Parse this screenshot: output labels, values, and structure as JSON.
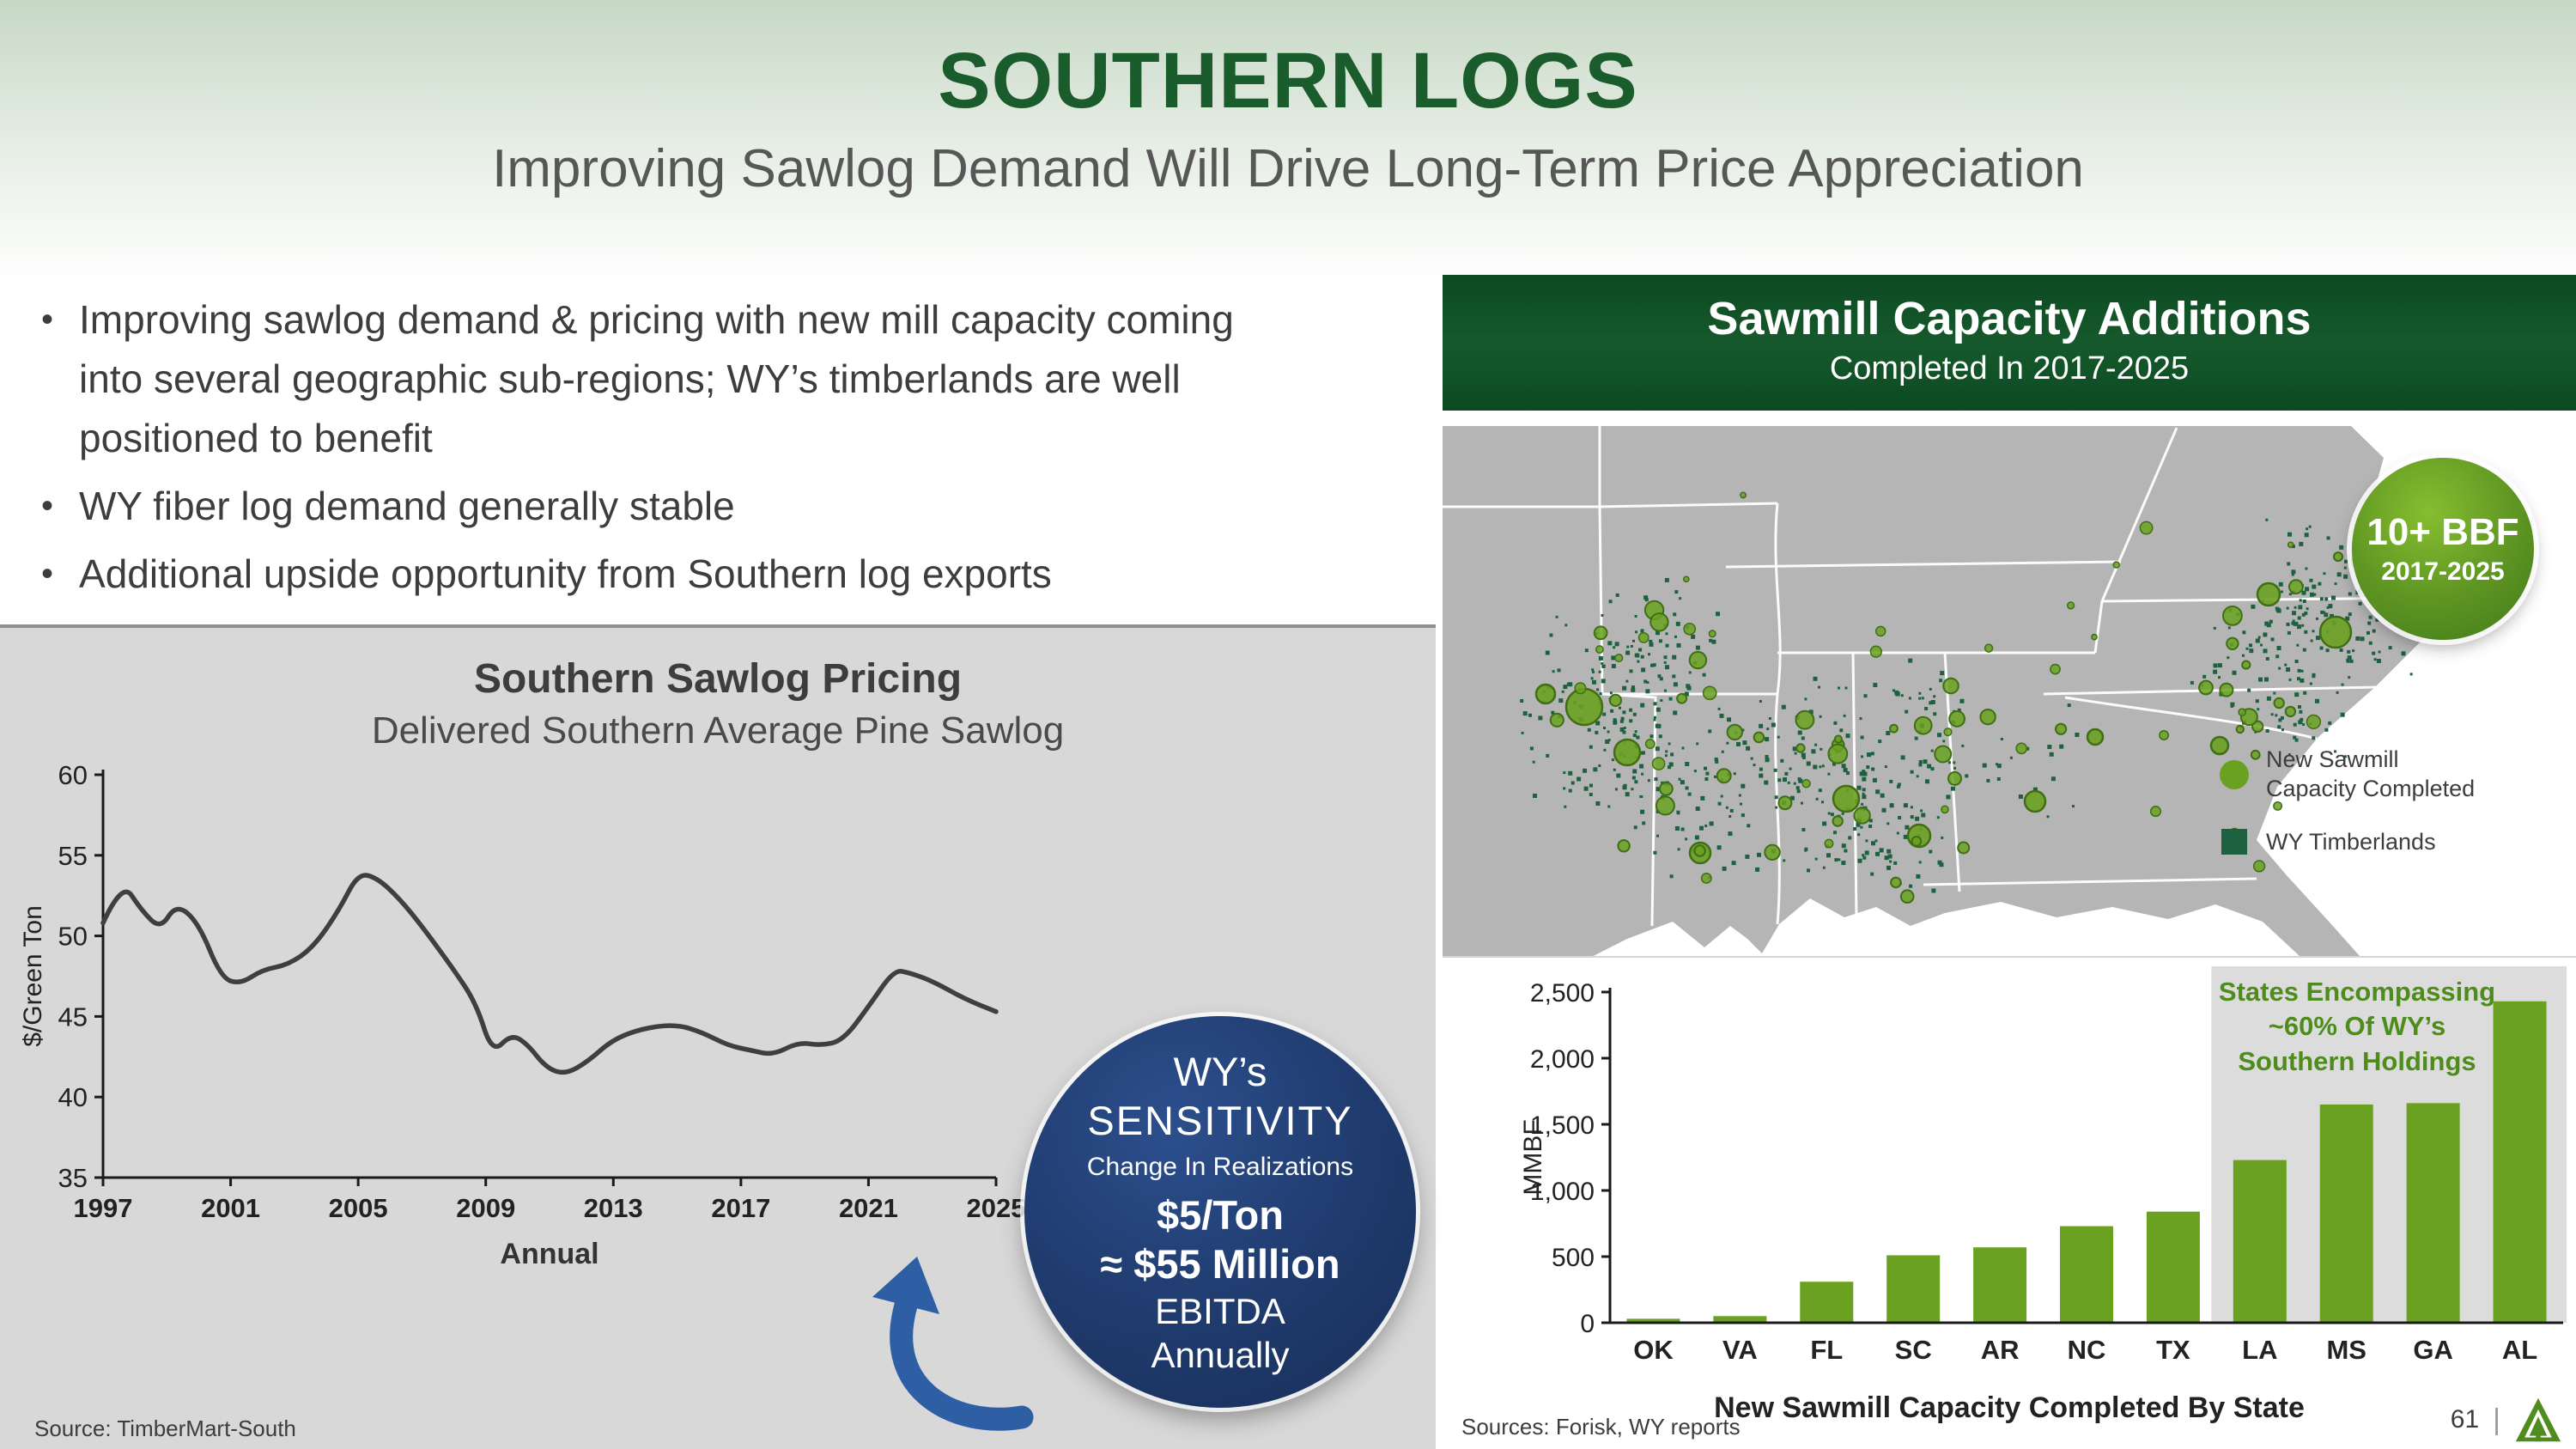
{
  "colors": {
    "title_green": "#1a5c2c",
    "text_dark": "#3d3d3d",
    "panel_gray": "#d8d8d8",
    "header_green": "#0c4a22",
    "accent_green": "#6aa121",
    "annotation_green": "#4e8c1c",
    "timberland_green": "#1e6140",
    "navy": "#1f3a6c",
    "arrow_blue": "#2e5ea4",
    "map_land": "#b5b5b5",
    "line_stroke": "#3f3f3f",
    "highlight_gray": "#dcdcdc"
  },
  "slide": {
    "title": "SOUTHERN LOGS",
    "subtitle": "Improving Sawlog Demand Will Drive Long-Term Price Appreciation",
    "page_number": "61"
  },
  "bullets": [
    "Improving sawlog demand & pricing with new mill capacity coming into several geographic sub-regions; WY’s timberlands are well positioned to benefit",
    "WY fiber log demand generally stable",
    "Additional upside opportunity from Southern log exports"
  ],
  "left_panel": {
    "source": "Source: TimberMart-South"
  },
  "sensitivity": {
    "line1": "WY’s",
    "line2": "SENSITIVITY",
    "line3": "Change In Realizations",
    "line4": "$5/Ton",
    "line5": "≈ $55 Million",
    "line6": "EBITDA",
    "line7": "Annually"
  },
  "map_panel": {
    "title": "Sawmill Capacity Additions",
    "subtitle": "Completed In 2017-2025",
    "badge": {
      "line1": "10+ BBF",
      "line2": "2017-2025"
    },
    "legend": [
      {
        "symbol": "green-circle",
        "label": "New Sawmill\nCapacity Completed"
      },
      {
        "symbol": "dark-green-square",
        "label": "WY Timberlands"
      }
    ]
  },
  "right_panel": {
    "source": "Sources: Forisk, WY reports"
  },
  "chart_data": [
    {
      "type": "line",
      "title": "Southern Sawlog Pricing",
      "subtitle": "Delivered Southern Average Pine Sawlog",
      "xlabel": "Annual",
      "ylabel": "$/Green Ton",
      "xlim": [
        1997,
        2025
      ],
      "ylim": [
        35,
        60
      ],
      "yticks": [
        35,
        40,
        45,
        50,
        55,
        60
      ],
      "xticks": [
        1997,
        2001,
        2005,
        2009,
        2013,
        2017,
        2021,
        2025
      ],
      "x": [
        1997.0,
        1997.6,
        1998.2,
        1998.8,
        1999.3,
        2000.0,
        2000.7,
        2001.3,
        2002.0,
        2002.8,
        2003.6,
        2004.4,
        2005.0,
        2005.6,
        2006.3,
        2007.0,
        2008.0,
        2008.7,
        2009.2,
        2009.8,
        2010.3,
        2010.9,
        2011.5,
        2012.2,
        2013.0,
        2014.0,
        2015.0,
        2015.8,
        2016.6,
        2017.3,
        2018.0,
        2018.8,
        2019.5,
        2020.2,
        2021.0,
        2021.8,
        2022.3,
        2023.0,
        2024.0,
        2025.0
      ],
      "y": [
        50.8,
        53.4,
        51.6,
        50.4,
        52.0,
        50.8,
        47.4,
        47.0,
        47.9,
        48.2,
        49.3,
        51.6,
        53.9,
        53.6,
        52.3,
        50.6,
        47.9,
        45.8,
        42.7,
        43.9,
        43.3,
        41.8,
        41.4,
        42.2,
        43.6,
        44.3,
        44.5,
        44.0,
        43.2,
        42.9,
        42.6,
        43.4,
        43.2,
        43.5,
        45.6,
        47.9,
        47.7,
        47.2,
        46.1,
        45.3
      ]
    },
    {
      "type": "bar",
      "categories": [
        "OK",
        "VA",
        "FL",
        "SC",
        "AR",
        "NC",
        "TX",
        "LA",
        "MS",
        "GA",
        "AL"
      ],
      "values": [
        30,
        50,
        310,
        510,
        570,
        730,
        840,
        1230,
        1650,
        1660,
        2430
      ],
      "xlabel": "New Sawmill Capacity Completed By State",
      "ylabel": "MMBF",
      "ylim": [
        0,
        2500
      ],
      "yticks": [
        0,
        500,
        1000,
        1500,
        2000,
        2500
      ],
      "highlight_from": "LA",
      "annotation": "States Encompassing\n~60% Of WY’s\nSouthern Holdings",
      "legend_position": "none",
      "grid": false
    }
  ]
}
